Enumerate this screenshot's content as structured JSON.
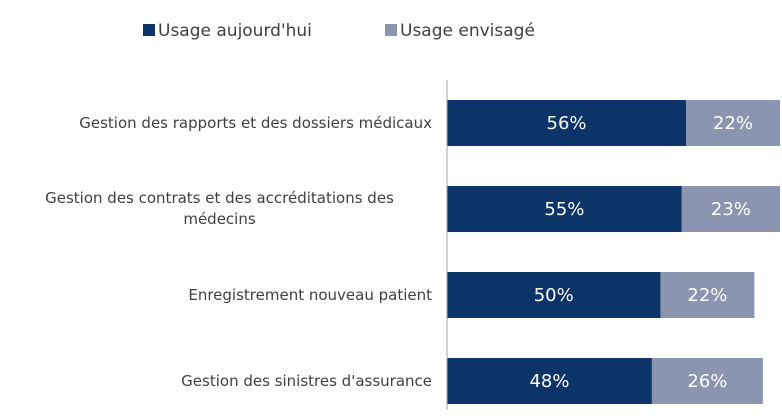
{
  "chart_data": {
    "type": "stacked-barh",
    "categories": [
      "Gestion des rapports et des dossiers médicaux",
      "Gestion des contrats et des accréditations des médecins",
      "Enregistrement nouveau patient",
      "Gestion des sinistres d'assurance"
    ],
    "series": [
      {
        "name": "Usage aujourd'hui",
        "color": "#0c3468",
        "values": [
          56,
          55,
          50,
          48
        ],
        "value_labels": [
          "56%",
          "55%",
          "50%",
          "48%"
        ]
      },
      {
        "name": "Usage envisagé",
        "color": "#8b95b0",
        "values": [
          22,
          23,
          22,
          26
        ],
        "value_labels": [
          "22%",
          "23%",
          "22%",
          "26%"
        ]
      }
    ],
    "xlim": [
      0,
      78
    ],
    "legend": "top"
  }
}
